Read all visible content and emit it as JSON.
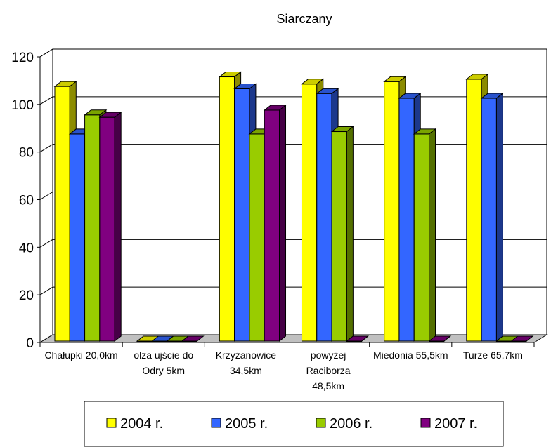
{
  "chart_data": {
    "type": "bar",
    "title": "Siarczany",
    "xlabel": "",
    "ylabel": "",
    "ylim": [
      0,
      120
    ],
    "yticks": [
      0,
      20,
      40,
      60,
      80,
      100,
      120
    ],
    "categories": [
      [
        "Chałupki 20,0km"
      ],
      [
        "olza ujście do",
        "Odry 5km"
      ],
      [
        "Krzyżanowice",
        "34,5km"
      ],
      [
        "powyżej",
        "Raciborza",
        "48,5km"
      ],
      [
        "Miedonia 55,5km"
      ],
      [
        "Turze 65,7km"
      ]
    ],
    "series": [
      {
        "name": "2004 r.",
        "color": "#ffff00",
        "values": [
          107,
          0,
          111,
          108,
          109,
          110
        ]
      },
      {
        "name": "2005 r.",
        "color": "#3366ff",
        "values": [
          87,
          0,
          106,
          104,
          102,
          102
        ]
      },
      {
        "name": "2006 r.",
        "color": "#99cc00",
        "values": [
          95,
          0,
          87,
          88,
          87,
          0
        ]
      },
      {
        "name": "2007 r.",
        "color": "#800080",
        "values": [
          94,
          0,
          97,
          0,
          0,
          0
        ]
      }
    ],
    "grid": true,
    "legend_position": "bottom",
    "style": "3d-clustered-column"
  }
}
